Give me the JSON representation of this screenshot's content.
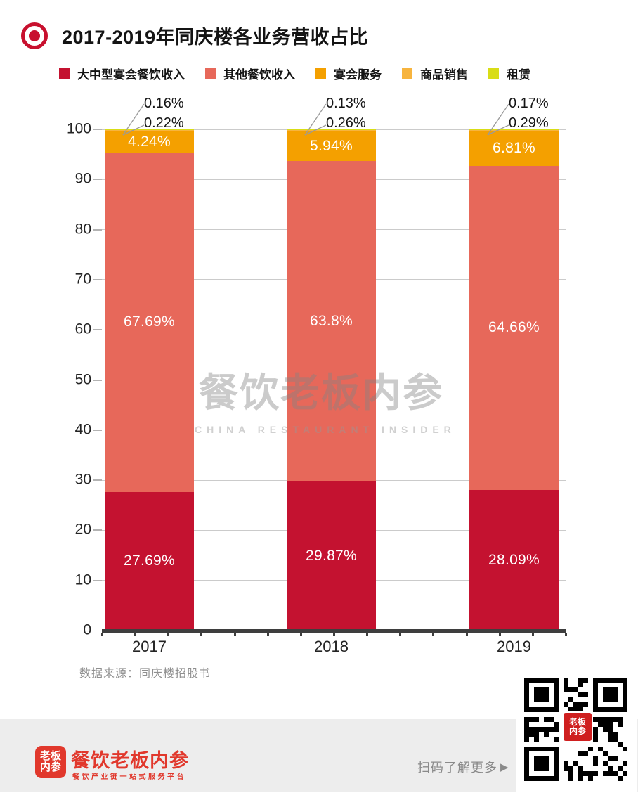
{
  "header": {
    "title": "2017-2019年同庆楼各业务营收占比"
  },
  "chart_data": {
    "type": "bar",
    "stacked": true,
    "title": "2017-2019年同庆楼各业务营收占比",
    "categories": [
      "2017",
      "2018",
      "2019"
    ],
    "series": [
      {
        "name": "大中型宴会餐饮收入",
        "color": "#c41230",
        "values": [
          27.69,
          29.87,
          28.09
        ],
        "labels": [
          "27.69%",
          "29.87%",
          "28.09%"
        ],
        "label_style": "inside"
      },
      {
        "name": "其他餐饮收入",
        "color": "#e7685a",
        "values": [
          67.69,
          63.8,
          64.66
        ],
        "labels": [
          "67.69%",
          "63.8%",
          "64.66%"
        ],
        "label_style": "inside"
      },
      {
        "name": "宴会服务",
        "color": "#f4a000",
        "values": [
          4.24,
          5.94,
          6.81
        ],
        "labels": [
          "4.24%",
          "5.94%",
          "6.81%"
        ],
        "label_style": "inside"
      },
      {
        "name": "商品销售",
        "color": "#f7b43e",
        "values": [
          0.22,
          0.26,
          0.29
        ],
        "labels": [
          "0.22%",
          "0.26%",
          "0.29%"
        ],
        "label_style": "callout"
      },
      {
        "name": "租赁",
        "color": "#d9dd16",
        "values": [
          0.16,
          0.13,
          0.17
        ],
        "labels": [
          "0.16%",
          "0.13%",
          "0.17%"
        ],
        "label_style": "callout"
      }
    ],
    "ylim": [
      0,
      100
    ],
    "ytick_interval": 10,
    "grid": true,
    "legend_position": "top"
  },
  "watermark": {
    "text": "餐饮老板内参",
    "subtext": "CHINA RESTAURANT INSIDER"
  },
  "source": {
    "text": "数据来源：同庆楼招股书"
  },
  "footer": {
    "logo_line1": "老板",
    "logo_line2": "内参",
    "brand": "餐饮老板内参",
    "tagline": "餐饮产业链一站式服务平台",
    "scan_text": "扫码了解更多",
    "scan_arrow": "▶"
  },
  "colors": {
    "accent_red": "#c8102e",
    "brand_red": "#e1382c",
    "axis": "#3e3e3e",
    "gridline": "#cbcbcb",
    "muted_text": "#8f8f8f",
    "footer_band": "#ededed"
  }
}
